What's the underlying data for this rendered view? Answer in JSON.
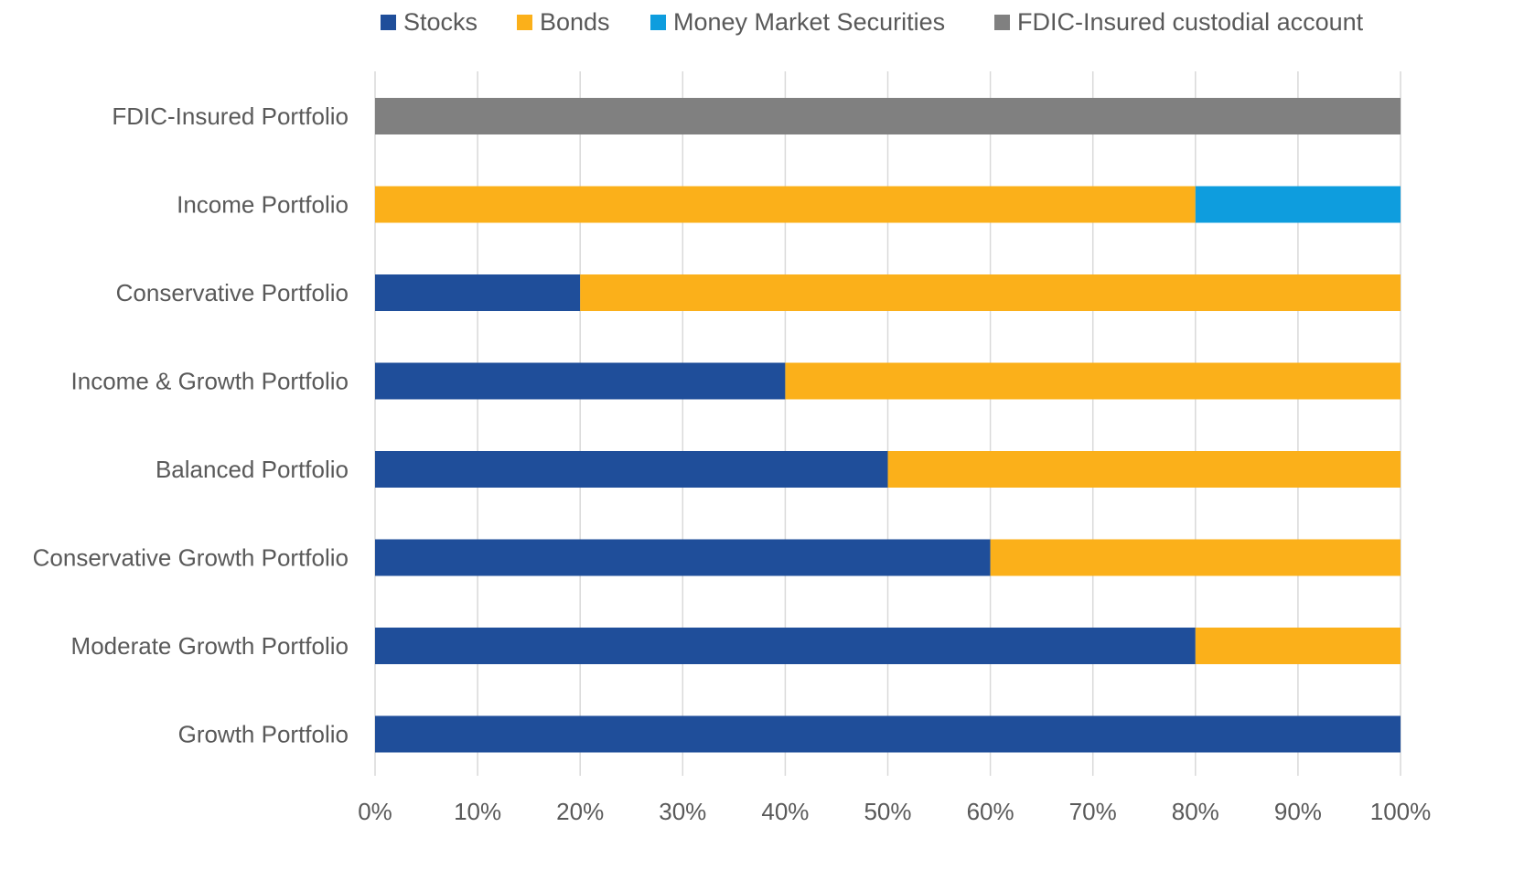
{
  "chart_data": {
    "type": "bar",
    "orientation": "horizontal",
    "stacked": true,
    "categories": [
      "FDIC-Insured Portfolio",
      "Income Portfolio",
      "Conservative Portfolio",
      "Income & Growth Portfolio",
      "Balanced Portfolio",
      "Conservative Growth Portfolio",
      "Moderate Growth Portfolio",
      "Growth Portfolio"
    ],
    "series": [
      {
        "name": "Stocks",
        "color": "#1F4E9A",
        "values": [
          0,
          0,
          20,
          40,
          50,
          60,
          80,
          100
        ]
      },
      {
        "name": "Bonds",
        "color": "#FBB01A",
        "values": [
          0,
          80,
          80,
          60,
          50,
          40,
          20,
          0
        ]
      },
      {
        "name": "Money Market Securities",
        "color": "#0E9DDE",
        "values": [
          0,
          20,
          0,
          0,
          0,
          0,
          0,
          0
        ]
      },
      {
        "name": "FDIC-Insured custodial account",
        "color": "#808080",
        "values": [
          100,
          0,
          0,
          0,
          0,
          0,
          0,
          0
        ]
      }
    ],
    "x_ticks": [
      "0%",
      "10%",
      "20%",
      "30%",
      "40%",
      "50%",
      "60%",
      "70%",
      "80%",
      "90%",
      "100%"
    ],
    "xlim": [
      0,
      100
    ],
    "grid": "vertical",
    "legend": "top"
  }
}
